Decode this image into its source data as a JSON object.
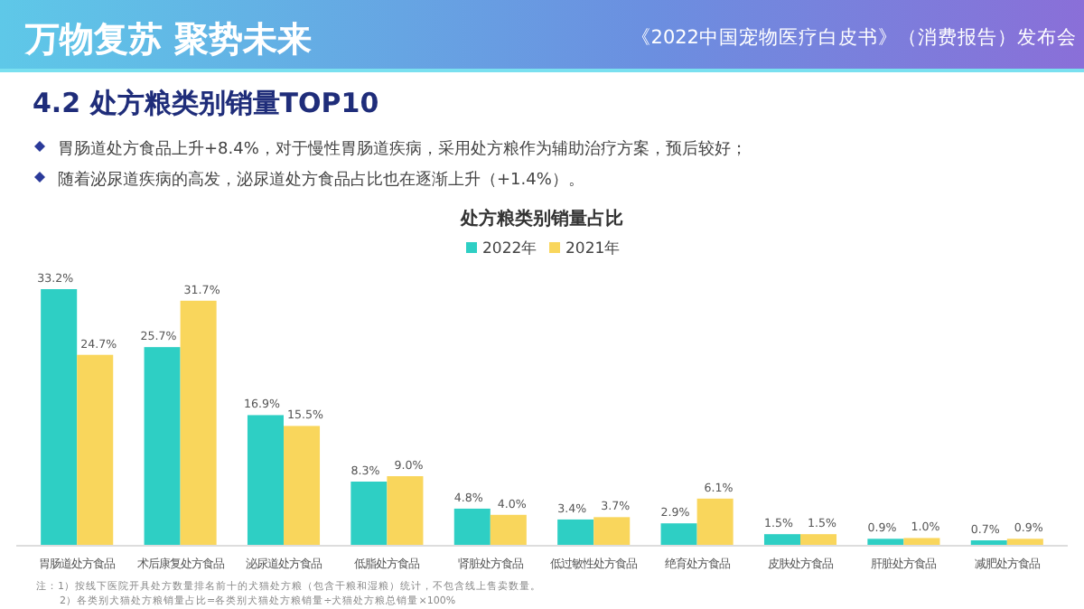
{
  "chart_data": {
    "type": "bar",
    "title": "处方粮类别销量占比",
    "categories": [
      "胃肠道处方食品",
      "术后康复处方食品",
      "泌尿道处方食品",
      "低脂处方食品",
      "肾脏处方食品",
      "低过敏性处方食品",
      "绝育处方食品",
      "皮肤处方食品",
      "肝脏处方食品",
      "减肥处方食品"
    ],
    "series": [
      {
        "name": "2022年",
        "color": "#2ecfc4",
        "values": [
          33.2,
          25.7,
          16.9,
          8.3,
          4.8,
          3.4,
          2.9,
          1.5,
          0.9,
          0.7
        ],
        "value_labels": [
          "33.2%",
          "25.7%",
          "16.9%",
          "8.3%",
          "4.8%",
          "3.4%",
          "2.9%",
          "1.5%",
          "0.9%",
          "0.7%"
        ]
      },
      {
        "name": "2021年",
        "color": "#f9d65c",
        "values": [
          24.7,
          31.7,
          15.5,
          9.0,
          4.0,
          3.7,
          6.1,
          1.5,
          1.0,
          0.9
        ],
        "value_labels": [
          "24.7%",
          "31.7%",
          "15.5%",
          "9.0%",
          "4.0%",
          "3.7%",
          "6.1%",
          "1.5%",
          "1.0%",
          "0.9%"
        ]
      }
    ],
    "legend": "top",
    "annotations": [
      "万物复苏  聚势未来",
      "《2022中国宠物医疗白皮书》（消费报告）发布会",
      "4.2 处方粮类别销量TOP10",
      "胃肠道处方食品上升+8.4%，对于慢性胃肠道疾病，采用处方粮作为辅助治疗方案，预后较好；",
      "随着泌尿道疾病的高发，泌尿道处方食品占比也在逐渐上升（+1.4%）。",
      "注：1）按线下医院开具处方数量排名前十的犬猫处方粮（包含干粮和湿粮）统计，不包含线上售卖数量。",
      "2）各类别犬猫处方粮销量占比=各类别犬猫处方粮销量÷犬猫处方粮总销量×100%"
    ]
  }
}
